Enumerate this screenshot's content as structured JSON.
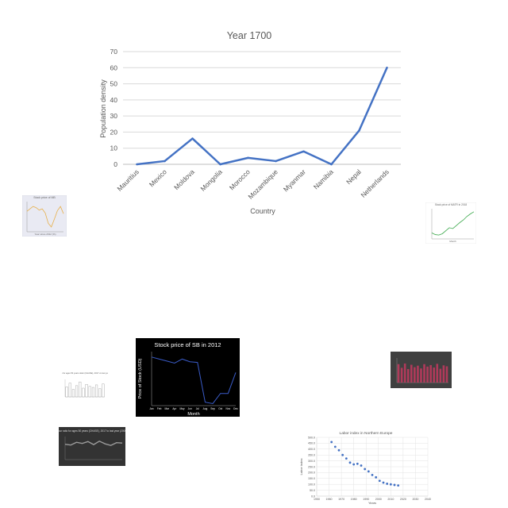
{
  "main_chart": {
    "chart_data": {
      "type": "line",
      "title": "Year 1700",
      "xlabel": "Country",
      "ylabel": "Population density",
      "categories": [
        "Mauritius",
        "Mexico",
        "Moldova",
        "Mongolia",
        "Morocco",
        "Mozambique",
        "Myanmar",
        "Namibia",
        "Nepal",
        "Netherlands"
      ],
      "values": [
        0,
        2,
        16,
        0,
        4,
        2,
        8,
        0,
        21,
        60
      ],
      "ylim": [
        0,
        70
      ],
      "yticks": [
        "0",
        "10",
        "20",
        "30",
        "40",
        "50",
        "60",
        "70"
      ],
      "grid": true,
      "color": "#4472c4"
    }
  },
  "thumbnails": [
    {
      "chart_data": {
        "type": "line",
        "title": "Stock price of MB",
        "xlabel": "Year since 2012 (%)",
        "ylabel": "",
        "values": [
          34,
          38,
          42,
          40,
          36,
          38,
          31,
          14,
          8,
          21,
          35,
          42,
          30
        ],
        "ylim": [
          0,
          50
        ],
        "color": "#e8b04a",
        "background": "#e9eaf3"
      }
    },
    {
      "chart_data": {
        "type": "line",
        "title": "Stock price of MATR in 2018",
        "xlabel": "Month",
        "ylabel": "",
        "values": [
          14,
          10,
          9,
          12,
          19,
          26,
          24,
          31,
          38,
          44,
          52,
          58,
          63
        ],
        "ylim": [
          0,
          70
        ],
        "color": "#3aa84a",
        "background": "#ffffff"
      }
    },
    {
      "chart_data": {
        "type": "line",
        "title": "Stock price of SB in 2012",
        "xlabel": "Month",
        "ylabel": "Price of Stock (USD)",
        "categories": [
          "Jan",
          "Feb",
          "Mar",
          "Apr",
          "May",
          "Jun",
          "Jul",
          "Aug",
          "Sep",
          "Oct",
          "Nov",
          "Dec"
        ],
        "values": [
          7.2,
          6.9,
          6.6,
          6.3,
          6.9,
          6.5,
          6.4,
          0.5,
          0.3,
          1.8,
          1.8,
          4.9
        ],
        "ylim": [
          0,
          8
        ],
        "color": "#3a5bc7",
        "background": "#000000"
      }
    },
    {
      "chart_data": {
        "type": "bar",
        "title": "Your ratio for ages 50 years older (CHASE), 2017 vs last year (2000)",
        "xlabel": "",
        "ylabel": "",
        "values": [
          40,
          55,
          30,
          45,
          60,
          35,
          50,
          42,
          38,
          48,
          33,
          52
        ],
        "ylim": [
          0,
          70
        ],
        "color": "#ffffff",
        "background": "#ffffff"
      }
    },
    {
      "chart_data": {
        "type": "bar",
        "title": "",
        "xlabel": "",
        "ylabel": "",
        "values": [
          60,
          48,
          62,
          44,
          58,
          50,
          55,
          46,
          60,
          52,
          57,
          49,
          61,
          45,
          56,
          53
        ],
        "ylim": [
          0,
          80
        ],
        "color": "#b03a5a",
        "background": "#404040"
      }
    },
    {
      "chart_data": {
        "type": "line",
        "title": "Your ratio for ages 50 years (CHASE), 2017 to last year (2000)",
        "xlabel": "",
        "ylabel": "",
        "values": [
          40,
          38,
          45,
          42,
          47,
          39,
          48,
          41,
          37,
          44,
          43
        ],
        "ylim": [
          0,
          60
        ],
        "color": "#9a9a9a",
        "background": "#333333"
      }
    },
    {
      "chart_data": {
        "type": "scatter",
        "title": "Labor index in Northern Europe",
        "xlabel": "Years",
        "ylabel": "Labor index",
        "x": [
          1962,
          1965,
          1968,
          1971,
          1974,
          1977,
          1980,
          1983,
          1986,
          1989,
          1992,
          1995,
          1998,
          2001,
          2004,
          2007,
          2010,
          2013,
          2016
        ],
        "y": [
          460,
          420,
          390,
          350,
          320,
          285,
          270,
          275,
          260,
          230,
          210,
          180,
          160,
          130,
          115,
          105,
          100,
          95,
          90
        ],
        "xlim": [
          1950,
          2040
        ],
        "ylim": [
          0,
          500
        ],
        "xticks": [
          "1950",
          "1960",
          "1970",
          "1980",
          "1990",
          "2000",
          "2010",
          "2020",
          "2030",
          "2040"
        ],
        "yticks": [
          "0.0",
          "50.0",
          "100.0",
          "150.0",
          "200.0",
          "250.0",
          "300.0",
          "350.0",
          "400.0",
          "450.0",
          "500.0"
        ],
        "color": "#4472c4",
        "background": "#ffffff"
      }
    }
  ]
}
